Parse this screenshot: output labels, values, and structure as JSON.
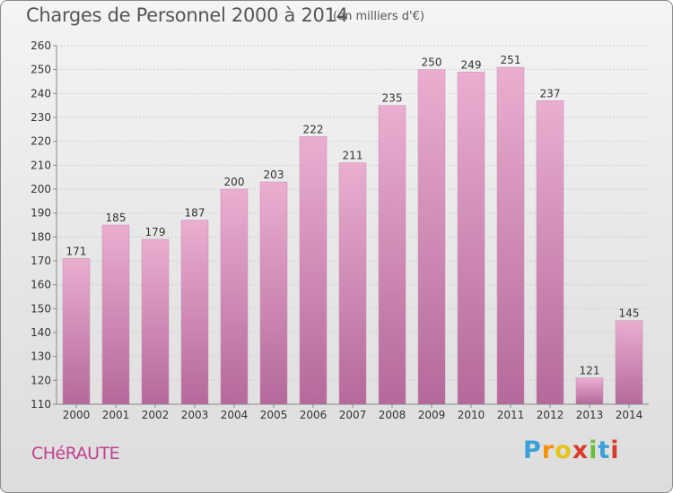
{
  "title": "Charges de Personnel 2000 à 2014",
  "subtitle": "(en milliers d'€)",
  "commune": "CHéRAUTE",
  "logo": {
    "text": "Proxiti"
  },
  "colors": {
    "bar_top": "#e8a8cc",
    "bar_bottom": "#b86b9c",
    "commune": "#c0408e"
  },
  "chart_data": {
    "type": "bar",
    "title": "Charges de Personnel 2000 à 2014",
    "subtitle": "(en milliers d'€)",
    "categories": [
      "2000",
      "2001",
      "2002",
      "2003",
      "2004",
      "2005",
      "2006",
      "2007",
      "2008",
      "2009",
      "2010",
      "2011",
      "2012",
      "2013",
      "2014"
    ],
    "values": [
      171,
      185,
      179,
      187,
      200,
      203,
      222,
      211,
      235,
      250,
      249,
      251,
      237,
      121,
      145
    ],
    "ylim": [
      110,
      260
    ],
    "yticks": [
      110,
      120,
      130,
      140,
      150,
      160,
      170,
      180,
      190,
      200,
      210,
      220,
      230,
      240,
      250,
      260
    ],
    "grid": true,
    "legend": "none"
  }
}
